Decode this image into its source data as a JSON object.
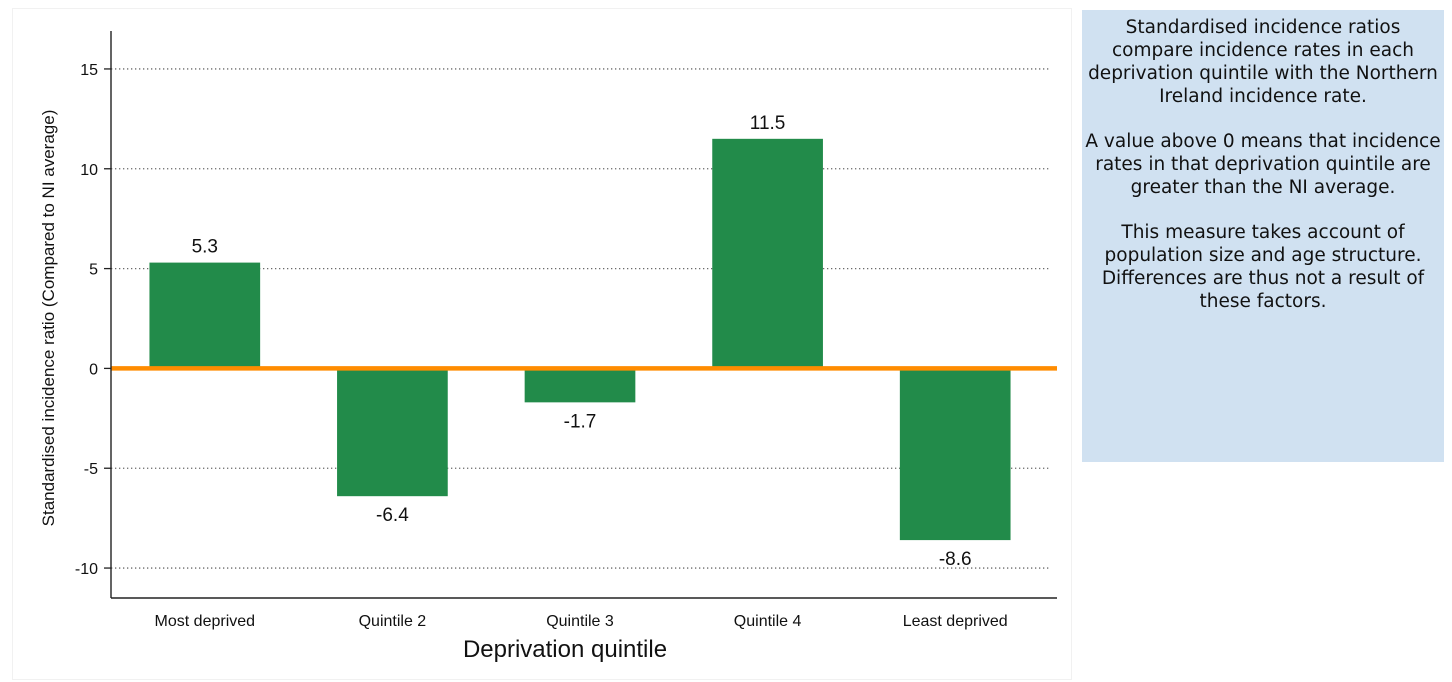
{
  "chart_data": {
    "type": "bar",
    "categories": [
      "Most deprived",
      "Quintile 2",
      "Quintile 3",
      "Quintile 4",
      "Least deprived"
    ],
    "values": [
      5.3,
      -6.4,
      -1.7,
      11.5,
      -8.6
    ],
    "data_labels": [
      "5.3",
      "-6.4",
      "-1.7",
      "11.5",
      "-8.6"
    ],
    "xlabel": "Deprivation quintile",
    "ylabel": "Standardised incidence ratio (Compared to NI average)",
    "ylim": [
      -11.5,
      16.5
    ],
    "yticks": [
      15,
      10,
      5,
      0,
      -5,
      -10
    ],
    "ytick_labels": [
      "15",
      "10",
      "5",
      "0",
      "-5",
      "-10"
    ],
    "grid": "horizontal dotted",
    "reference_line": {
      "value": 0,
      "color": "#ff8c00"
    },
    "bar_color": "#228b4a"
  },
  "note": {
    "paragraphs": [
      "Standardised incidence ratios compare incidence rates in each deprivation quintile with the Northern Ireland incidence rate.",
      "A value above 0 means that incidence rates in that deprivation quintile are greater than the NI average.",
      "This measure takes account of population size and age structure. Differences are thus not a result of these factors."
    ]
  }
}
